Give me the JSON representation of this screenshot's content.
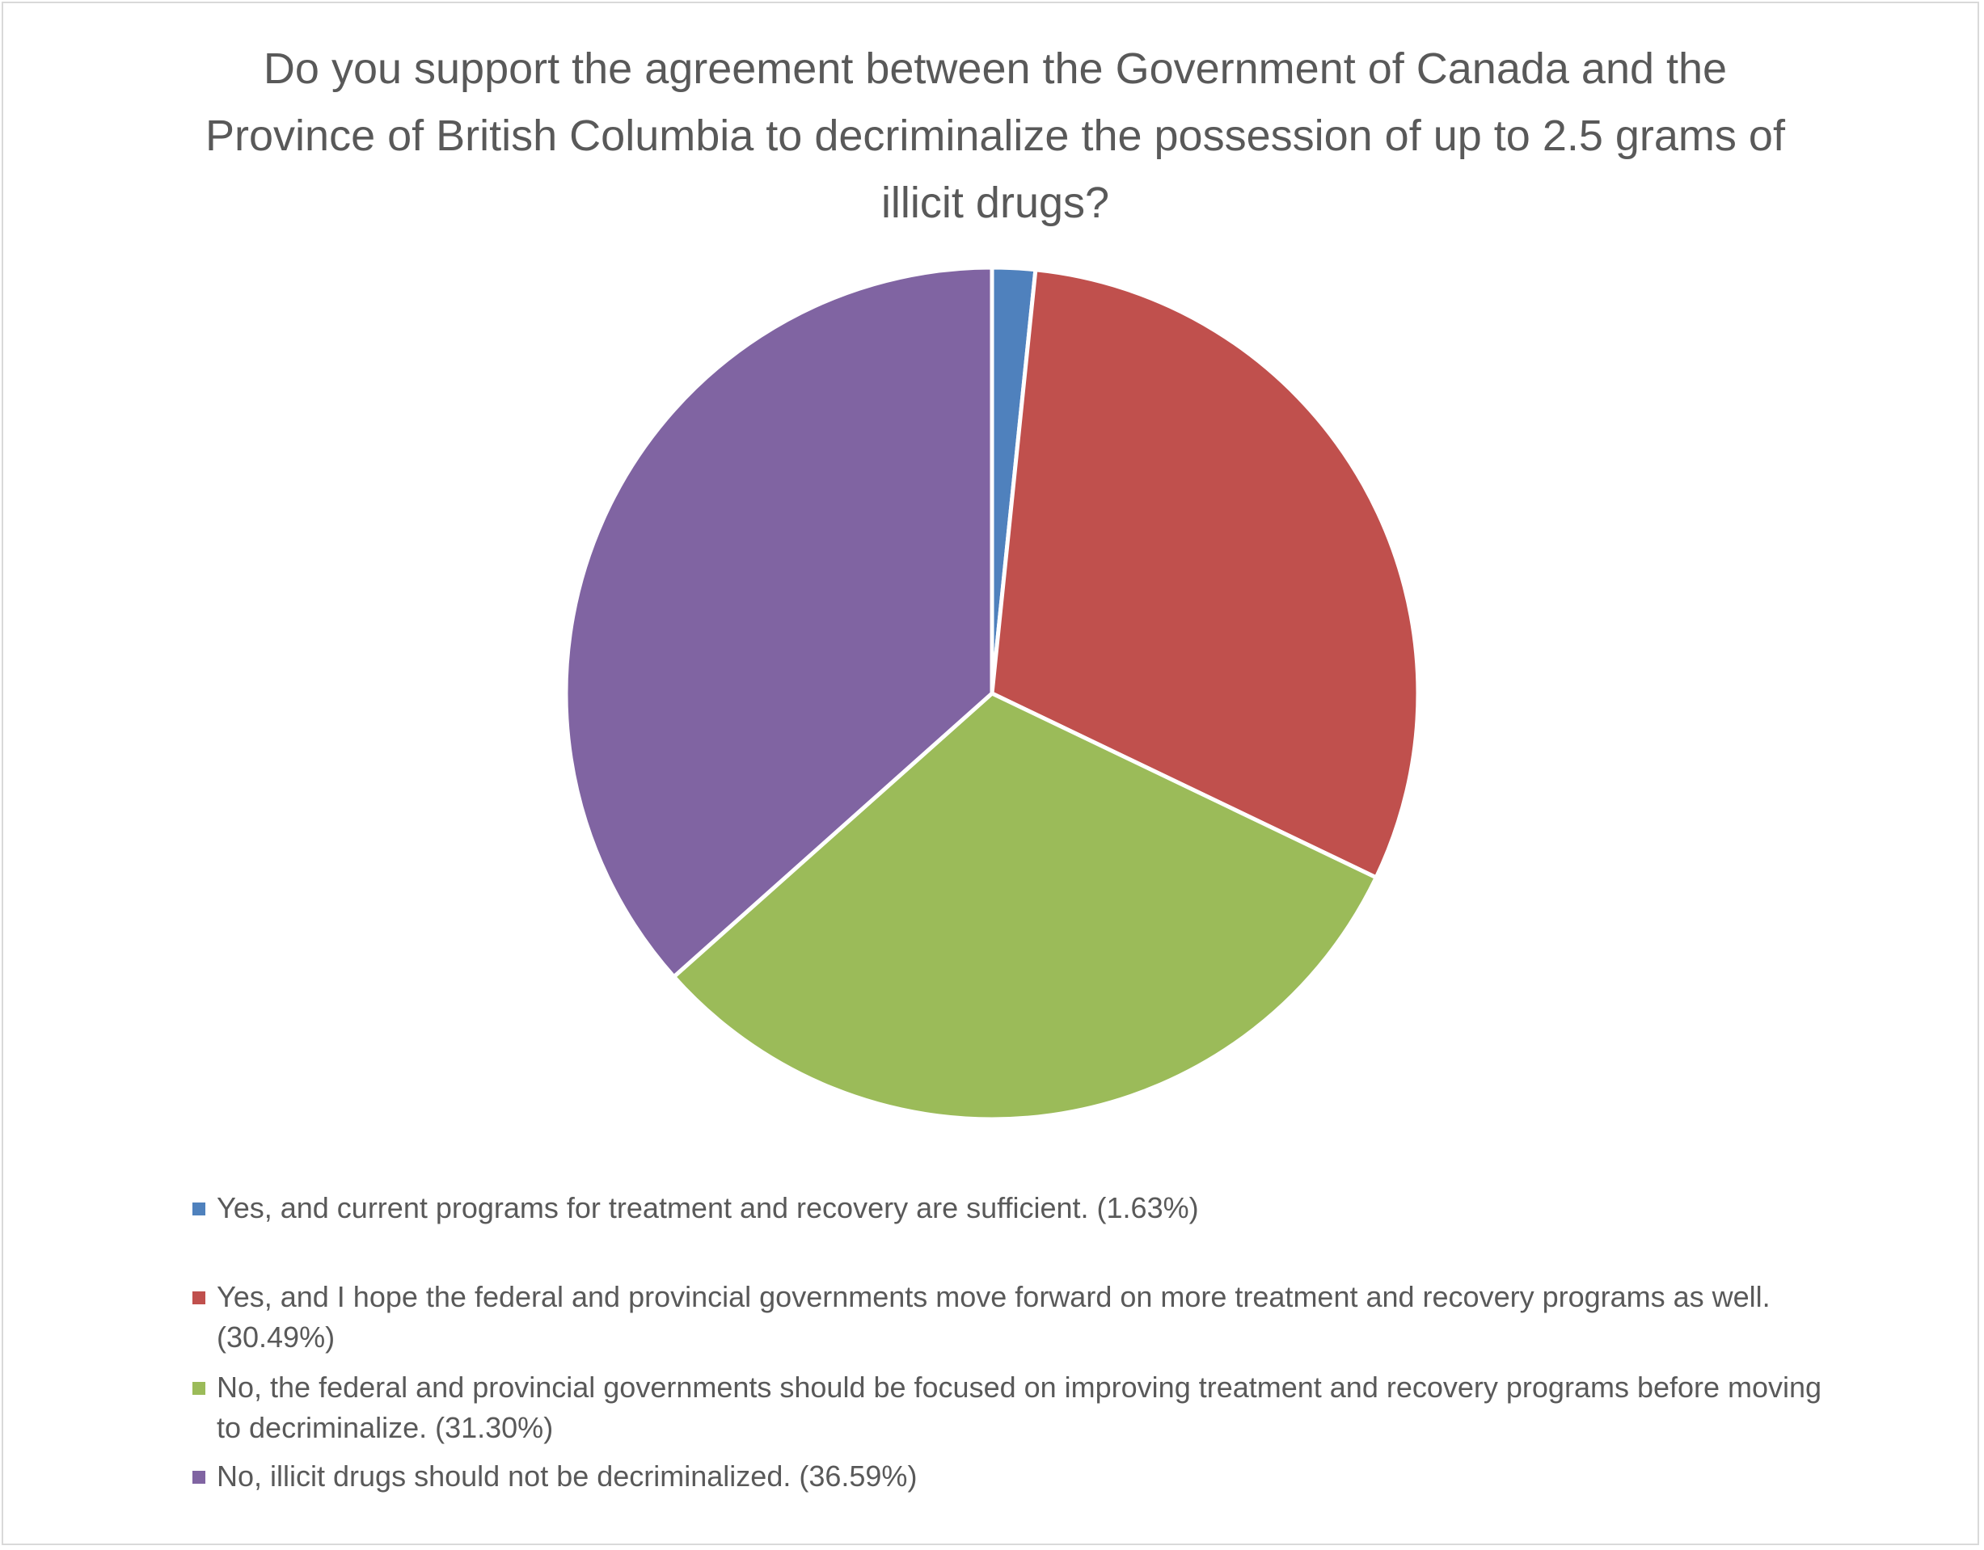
{
  "chart_data": {
    "type": "pie",
    "title": "Do you support the agreement between the Government of Canada and the Province of British Columbia to decriminalize the possession of up to 2.5 grams of illicit drugs?",
    "legend_position": "bottom",
    "slices": [
      {
        "label": "Yes, and current programs for treatment and recovery are sufficient. (1.63%)",
        "value": 1.63,
        "color": "#4f81bd"
      },
      {
        "label": "Yes, and I hope the federal and provincial governments move forward on more treatment and recovery programs as well. (30.49%)",
        "value": 30.49,
        "color": "#c0504d"
      },
      {
        "label": "No, the federal and provincial governments should be focused on improving treatment and recovery programs before moving to decriminalize. (31.30%)",
        "value": 31.3,
        "color": "#9bbb59"
      },
      {
        "label": "No, illicit drugs should not be decriminalized. (36.59%)",
        "value": 36.59,
        "color": "#8064a2"
      }
    ]
  }
}
